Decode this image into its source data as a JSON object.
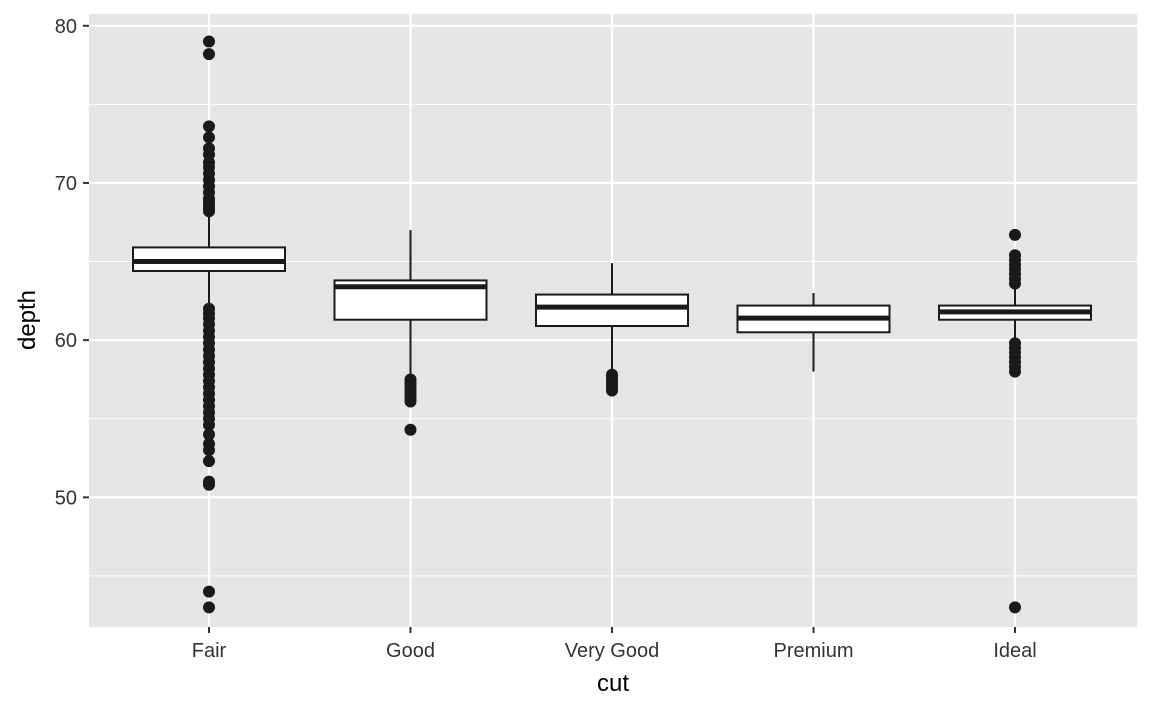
{
  "chart_data": {
    "type": "box",
    "xlabel": "cut",
    "ylabel": "depth",
    "ylim": [
      41.75,
      80.75
    ],
    "yticks": [
      50,
      60,
      70,
      80
    ],
    "y_minor_ticks": [
      45,
      55,
      65,
      75
    ],
    "categories": [
      "Fair",
      "Good",
      "Very Good",
      "Premium",
      "Ideal"
    ],
    "grid": true,
    "colors": {
      "panel": "#e5e5e5",
      "grid": "#ffffff",
      "box_fill": "#ffffff",
      "line": "#1a1a1a",
      "text": "#333333",
      "title": "#000000"
    },
    "boxes": [
      {
        "category": "Fair",
        "lower_whisker": 62.1,
        "q1": 64.4,
        "median": 65.0,
        "q3": 65.9,
        "upper_whisker": 68.1,
        "outliers": [
          79.0,
          78.2,
          73.6,
          72.9,
          72.2,
          71.8,
          71.3,
          71.0,
          70.6,
          70.2,
          69.8,
          69.4,
          69.0,
          68.8,
          68.6,
          68.4,
          68.2,
          62.0,
          61.7,
          61.4,
          61.0,
          60.6,
          60.2,
          59.8,
          59.4,
          59.0,
          58.6,
          58.2,
          57.8,
          57.4,
          57.0,
          56.6,
          56.2,
          55.8,
          55.4,
          55.0,
          54.6,
          54.0,
          53.4,
          53.0,
          52.3,
          51.0,
          50.8,
          44.0,
          43.0
        ]
      },
      {
        "category": "Good",
        "lower_whisker": 57.7,
        "q1": 61.3,
        "median": 63.4,
        "q3": 63.8,
        "upper_whisker": 67.0,
        "outliers": [
          57.5,
          57.3,
          57.1,
          56.9,
          56.7,
          56.5,
          56.3,
          56.1,
          54.3
        ]
      },
      {
        "category": "Very Good",
        "lower_whisker": 58.0,
        "q1": 60.9,
        "median": 62.1,
        "q3": 62.9,
        "upper_whisker": 64.9,
        "outliers": [
          57.8,
          57.6,
          57.4,
          57.2,
          57.0,
          56.8
        ]
      },
      {
        "category": "Premium",
        "lower_whisker": 58.0,
        "q1": 60.5,
        "median": 61.4,
        "q3": 62.2,
        "upper_whisker": 63.0,
        "outliers": []
      },
      {
        "category": "Ideal",
        "lower_whisker": 60.1,
        "q1": 61.3,
        "median": 61.8,
        "q3": 62.2,
        "upper_whisker": 63.4,
        "outliers": [
          66.7,
          65.4,
          65.1,
          64.8,
          64.5,
          64.2,
          63.9,
          63.6,
          59.8,
          59.5,
          59.2,
          58.9,
          58.6,
          58.3,
          58.0,
          43.0
        ]
      }
    ]
  }
}
